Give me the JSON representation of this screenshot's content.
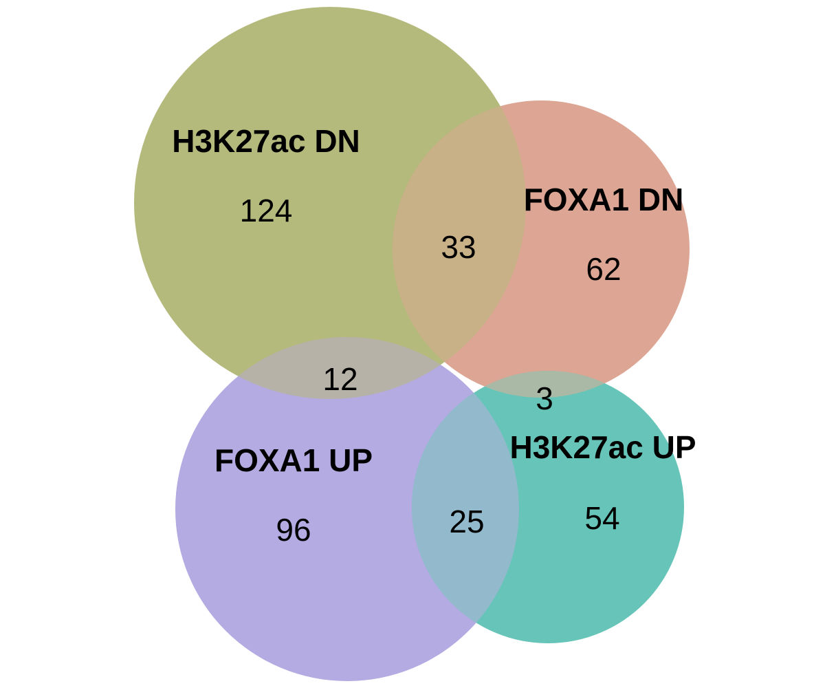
{
  "sets": [
    {
      "id": "h3k27ac_dn",
      "label": "H3K27ac DN",
      "color": "#b4b97c"
    },
    {
      "id": "foxa1_dn",
      "label": "FOXA1 DN",
      "color": "#dda694"
    },
    {
      "id": "foxa1_up",
      "label": "FOXA1 UP",
      "color": "#b3abe2"
    },
    {
      "id": "h3k27ac_up",
      "label": "H3K27ac UP",
      "color": "#66c5b8"
    }
  ],
  "regions": {
    "h3k27ac_dn_only": "124",
    "foxa1_dn_only": "62",
    "foxa1_up_only": "96",
    "h3k27ac_up_only": "54",
    "h3k27ac_dn_foxa1_dn": "33",
    "h3k27ac_dn_foxa1_up": "12",
    "foxa1_dn_h3k27ac_up": "3",
    "foxa1_up_h3k27ac_up": "25"
  },
  "overlap_colors": {
    "h3k27ac_dn_foxa1_dn": "#c8b087",
    "h3k27ac_dn_foxa1_up": "#b6b2a8",
    "foxa1_dn_h3k27ac_up": "#a9b9a6",
    "foxa1_up_h3k27ac_up": "#93b9cd"
  }
}
